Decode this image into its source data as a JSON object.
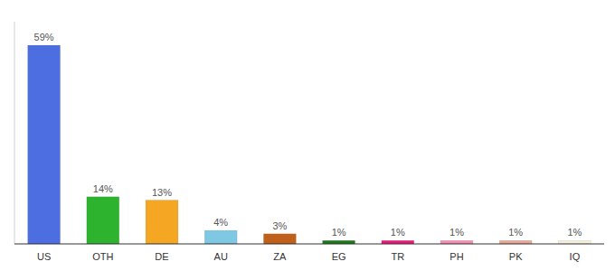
{
  "chart_data": {
    "type": "bar",
    "categories": [
      "US",
      "OTH",
      "DE",
      "AU",
      "ZA",
      "EG",
      "TR",
      "PH",
      "PK",
      "IQ"
    ],
    "values": [
      59,
      14,
      13,
      4,
      3,
      1,
      1,
      1,
      1,
      1
    ],
    "value_labels": [
      "59%",
      "14%",
      "13%",
      "4%",
      "3%",
      "1%",
      "1%",
      "1%",
      "1%",
      "1%"
    ],
    "colors": [
      "#4d6ee0",
      "#2db32d",
      "#f5a623",
      "#7ec8e3",
      "#c0601a",
      "#1a7a1a",
      "#e8197a",
      "#f48fb1",
      "#e8a898",
      "#f5f0dc"
    ],
    "ylim": [
      0,
      66
    ],
    "grid": false,
    "data_labels": true,
    "tick_labels": "x"
  }
}
